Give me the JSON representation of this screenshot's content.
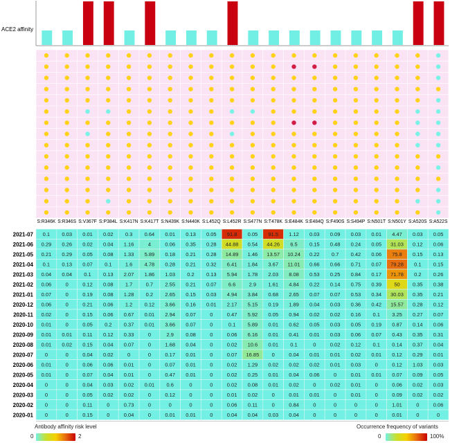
{
  "chart_data": [
    {
      "type": "bar",
      "ylabel": "ACE2 affinity",
      "categories": [
        "S:R346K",
        "S:R346S",
        "S:V367F",
        "S:P384L",
        "S:K417N",
        "S:K417T",
        "S:N439K",
        "S:N440K",
        "S:L452Q",
        "S:L452R",
        "S:S477N",
        "S:T478K",
        "S:E484K",
        "S:E484Q",
        "S:F490S",
        "S:S494P",
        "S:N501T",
        "S:N501Y",
        "S:A520S",
        "S:A522S"
      ],
      "levels": [
        "low",
        "low",
        "high",
        "high",
        "low",
        "high",
        "low",
        "low",
        "low",
        "high",
        "low",
        "low",
        "low",
        "low",
        "low",
        "low",
        "low",
        "low",
        "high",
        "high"
      ],
      "colors": {
        "high": "#c8000f",
        "low": "#72efe5"
      }
    },
    {
      "type": "dot-matrix",
      "title": "Antibody affinity risk level",
      "legend_range": [
        "0",
        "2"
      ],
      "risk_levels": [
        [
          1,
          1,
          1,
          1,
          1,
          1,
          1,
          1,
          1,
          1,
          1,
          1,
          1,
          1,
          1,
          1,
          1,
          1,
          1,
          0
        ],
        [
          1,
          1,
          1,
          1,
          1,
          1,
          1,
          1,
          1,
          1,
          1,
          1,
          2,
          2,
          1,
          1,
          1,
          1,
          1,
          0
        ],
        [
          1,
          1,
          1,
          1,
          1,
          1,
          1,
          1,
          1,
          1,
          1,
          1,
          1,
          1,
          1,
          1,
          1,
          1,
          1,
          0
        ],
        [
          1,
          1,
          1,
          1,
          1,
          1,
          1,
          1,
          1,
          1,
          1,
          1,
          1,
          1,
          1,
          1,
          1,
          1,
          1,
          1
        ],
        [
          1,
          1,
          1,
          1,
          1,
          1,
          1,
          1,
          1,
          1,
          1,
          1,
          1,
          1,
          1,
          1,
          1,
          1,
          1,
          0
        ],
        [
          1,
          1,
          0,
          0,
          1,
          1,
          1,
          1,
          1,
          0,
          0,
          1,
          1,
          1,
          1,
          1,
          1,
          1,
          0,
          0
        ],
        [
          1,
          1,
          1,
          1,
          1,
          1,
          1,
          1,
          1,
          1,
          1,
          1,
          2,
          2,
          1,
          1,
          1,
          1,
          0,
          0
        ],
        [
          1,
          1,
          0,
          1,
          1,
          1,
          1,
          1,
          1,
          0,
          1,
          1,
          1,
          1,
          1,
          1,
          1,
          1,
          0,
          0
        ],
        [
          1,
          1,
          1,
          1,
          1,
          1,
          1,
          1,
          1,
          1,
          1,
          1,
          1,
          1,
          1,
          1,
          1,
          1,
          0,
          0
        ],
        [
          1,
          1,
          1,
          1,
          1,
          1,
          1,
          1,
          1,
          1,
          1,
          1,
          1,
          1,
          1,
          1,
          1,
          1,
          1,
          1
        ],
        [
          1,
          1,
          1,
          1,
          1,
          1,
          1,
          1,
          1,
          1,
          1,
          1,
          1,
          1,
          1,
          1,
          1,
          1,
          1,
          0
        ],
        [
          1,
          1,
          1,
          1,
          1,
          1,
          1,
          1,
          1,
          1,
          1,
          1,
          1,
          1,
          1,
          1,
          1,
          1,
          1,
          1
        ],
        [
          1,
          1,
          1,
          1,
          1,
          1,
          1,
          1,
          1,
          1,
          1,
          1,
          1,
          1,
          1,
          1,
          1,
          1,
          1,
          0
        ],
        [
          1,
          1,
          1,
          0,
          1,
          1,
          1,
          1,
          1,
          1,
          1,
          1,
          1,
          1,
          1,
          1,
          1,
          1,
          0,
          0
        ],
        [
          1,
          1,
          1,
          1,
          1,
          1,
          1,
          1,
          1,
          1,
          1,
          1,
          1,
          1,
          1,
          1,
          1,
          1,
          1,
          0
        ]
      ],
      "colors": {
        "0": "#7af2e6",
        "1": "#ffd21a",
        "2": "#d21e46"
      }
    },
    {
      "type": "heatmap",
      "title": "Occurrence frequency of variants",
      "legend_range": [
        "0",
        "100%"
      ],
      "rows": [
        "2021-07",
        "2021-06",
        "2021-05",
        "2021-04",
        "2021-03",
        "2021-02",
        "2021-01",
        "2020-12",
        "2020-11",
        "2020-10",
        "2020-09",
        "2020-08",
        "2020-07",
        "2020-06",
        "2020-05",
        "2020-04",
        "2020-03",
        "2020-02",
        "2020-01"
      ],
      "values": [
        [
          0.1,
          0.03,
          0.01,
          0.02,
          0.3,
          0.64,
          0.01,
          0.13,
          0.05,
          91.8,
          0.05,
          91.5,
          1.12,
          0.03,
          0.09,
          0.03,
          0.01,
          4.47,
          0.03,
          0.05
        ],
        [
          0.29,
          0.26,
          0.02,
          0.04,
          1.16,
          4,
          0.06,
          0.35,
          0.28,
          44.88,
          0.54,
          44.26,
          6.5,
          0.15,
          0.48,
          0.24,
          0.05,
          31.03,
          0.12,
          0.06
        ],
        [
          0.21,
          0.29,
          0.05,
          0.08,
          1.33,
          5.89,
          0.18,
          0.21,
          0.28,
          14.89,
          1.46,
          13.57,
          10.24,
          0.22,
          0.7,
          0.42,
          0.06,
          75.8,
          0.15,
          0.13
        ],
        [
          0.1,
          0.13,
          0.07,
          0.1,
          1.6,
          4.78,
          0.28,
          0.21,
          0.32,
          6.41,
          1.84,
          3.67,
          11.01,
          0.66,
          0.66,
          0.71,
          0.07,
          79.28,
          0.1,
          0.15
        ],
        [
          0.04,
          0.04,
          0.1,
          0.13,
          2.07,
          1.86,
          1.03,
          0.2,
          0.13,
          5.94,
          1.78,
          2.03,
          8.08,
          0.53,
          0.25,
          0.84,
          0.17,
          71.78,
          0.2,
          0.26
        ],
        [
          0.06,
          0,
          0.12,
          0.08,
          1.7,
          0.7,
          2.55,
          0.21,
          0.07,
          6.6,
          2.9,
          1.61,
          4.84,
          0.22,
          0.14,
          0.75,
          0.39,
          50,
          0.35,
          0.38
        ],
        [
          0.07,
          0,
          0.19,
          0.08,
          1.28,
          0.2,
          2.65,
          0.15,
          0.03,
          4.94,
          3.84,
          0.68,
          2.65,
          0.07,
          0.07,
          0.53,
          0.34,
          30.03,
          0.35,
          0.21
        ],
        [
          0.06,
          0,
          0.21,
          0.06,
          1.2,
          0.12,
          3.66,
          0.16,
          0.01,
          2.17,
          5.15,
          0.19,
          1.89,
          0.04,
          0.03,
          0.36,
          0.42,
          15.57,
          0.28,
          0.12
        ],
        [
          0.02,
          0,
          0.15,
          0.06,
          0.67,
          0.01,
          2.94,
          0.07,
          0,
          0.47,
          5.92,
          0.05,
          0.94,
          0.02,
          0.02,
          0.16,
          0.1,
          3.25,
          0.27,
          0.07
        ],
        [
          0.01,
          0,
          0.05,
          0.2,
          0.37,
          0.01,
          3.66,
          0.07,
          0,
          0.1,
          5.89,
          0.01,
          0.62,
          0.05,
          0.03,
          0.05,
          0.19,
          0.87,
          0.14,
          0.06
        ],
        [
          0.01,
          0.01,
          0.11,
          0.12,
          0.33,
          0,
          2.9,
          0.08,
          0,
          0.06,
          6.16,
          0.01,
          0.41,
          0.01,
          0.03,
          0.06,
          0.07,
          0.43,
          0.35,
          0.31
        ],
        [
          0.01,
          0.02,
          0.15,
          0.04,
          0.07,
          0,
          1.68,
          0.04,
          0,
          0.02,
          10.6,
          0.01,
          0.1,
          0,
          0.02,
          0.12,
          0.1,
          0.14,
          0.37,
          0.04
        ],
        [
          0,
          0,
          0.04,
          0.02,
          0,
          0,
          0.17,
          0.01,
          0,
          0.07,
          16.85,
          0,
          0.04,
          0.01,
          0.01,
          0.02,
          0.01,
          0.12,
          0.29,
          0.01
        ],
        [
          0.01,
          0,
          0.06,
          0.06,
          0.01,
          0,
          0.07,
          0.01,
          0,
          0.02,
          1.29,
          0.02,
          0.02,
          0.02,
          0.01,
          0.03,
          0,
          0.12,
          1.03,
          0.03
        ],
        [
          0.01,
          0,
          0.07,
          0.04,
          0.01,
          0,
          0.47,
          0.01,
          0,
          0.02,
          0.25,
          0.01,
          0.04,
          0.06,
          0,
          0.01,
          0.01,
          0.07,
          0.09,
          0.05
        ],
        [
          0,
          0,
          0.04,
          0.03,
          0.02,
          0.01,
          0.6,
          0,
          0,
          0.02,
          0.08,
          0.01,
          0.02,
          0,
          0.02,
          0.01,
          0,
          0.06,
          0.02,
          0.03
        ],
        [
          0,
          0,
          0.05,
          0.02,
          0.02,
          0,
          0.12,
          0,
          0,
          0.01,
          0.02,
          0,
          0.01,
          0.01,
          0,
          0.01,
          0,
          0.09,
          0.02,
          0.02
        ],
        [
          0,
          0,
          0.11,
          0,
          0.73,
          0,
          0,
          0,
          0,
          0.06,
          0.11,
          0,
          0.84,
          0,
          0,
          0,
          0,
          1.01,
          0,
          0.06
        ],
        [
          0,
          0,
          0.15,
          0,
          0.04,
          0,
          0.01,
          0.01,
          0,
          0.04,
          0.04,
          0.03,
          0.04,
          0,
          0,
          0,
          0,
          0.01,
          0,
          0
        ]
      ],
      "color_scale": [
        "#72f0e4",
        "#98e88a",
        "#c8e030",
        "#f5d000",
        "#e86a10",
        "#c80000"
      ]
    }
  ]
}
